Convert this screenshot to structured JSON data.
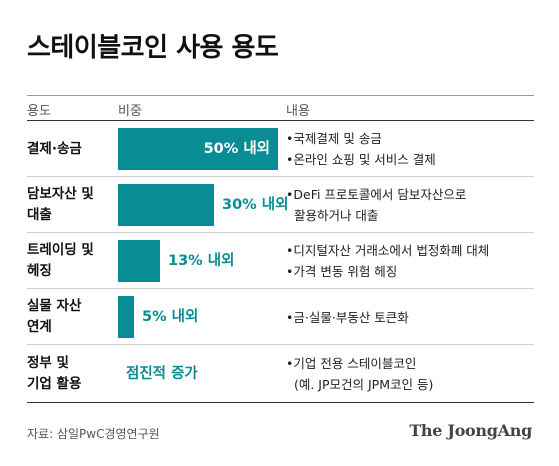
{
  "title": "스테이블코인 사용 용도",
  "headers": {
    "use": "용도",
    "share": "비중",
    "content": "내용"
  },
  "chart_data": {
    "type": "bar",
    "orientation": "horizontal",
    "title": "스테이블코인 사용 용도",
    "categories": [
      "결제·송금",
      "담보자산 및 대출",
      "트레이딩 및 헤징",
      "실물 자산 연계",
      "정부 및 기업 활용"
    ],
    "values": [
      50,
      30,
      13,
      5,
      null
    ],
    "value_labels": [
      "50% 내외",
      "30% 내외",
      "13% 내외",
      "5% 내외",
      "점진적 증가"
    ],
    "xlim": [
      0,
      50
    ],
    "grid": false,
    "legend": "none"
  },
  "rows": [
    {
      "use_lines": [
        "결제·송금"
      ],
      "label": "50% 내외",
      "content": [
        "•국제결제 및 송금",
        "•온라인 쇼핑 및 서비스 결제"
      ]
    },
    {
      "use_lines": [
        "담보자산 및",
        "대출"
      ],
      "label": "30% 내외",
      "content": [
        "•DeFi 프로토콜에서 담보자산으로",
        "  활용하거나 대출"
      ]
    },
    {
      "use_lines": [
        "트레이딩 및",
        "헤징"
      ],
      "label": "13% 내외",
      "content": [
        "•디지털자산 거래소에서 법정화폐 대체",
        "•가격 변동 위험 헤징"
      ]
    },
    {
      "use_lines": [
        "실물 자산",
        "연계"
      ],
      "label": "5% 내외",
      "content": [
        "•금·실물·부동산 토큰화"
      ]
    },
    {
      "use_lines": [
        "정부 및",
        "기업 활용"
      ],
      "label": "점진적 증가",
      "content": [
        "•기업 전용 스테이블코인",
        "  (예. JP모건의 JPM코인 등)"
      ]
    }
  ],
  "bar_color": "#0a8c94",
  "source": "자료: 삼일PwC경영연구원",
  "logo": "The JoongAng"
}
